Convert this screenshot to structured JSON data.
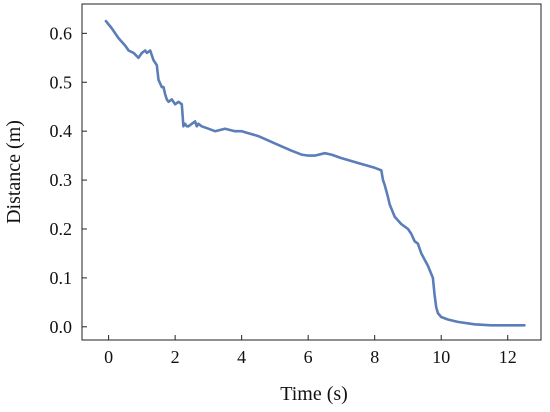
{
  "chart_data": {
    "type": "line",
    "xlabel": "Time (s)",
    "ylabel": "Distance (m)",
    "xlim": [
      -0.8,
      13.0
    ],
    "ylim": [
      -0.027,
      0.66
    ],
    "xticks": [
      0,
      2,
      4,
      6,
      8,
      10,
      12
    ],
    "yticks": [
      0.0,
      0.1,
      0.2,
      0.3,
      0.4,
      0.5,
      0.6
    ],
    "xtick_labels": [
      "0",
      "2",
      "4",
      "6",
      "8",
      "10",
      "12"
    ],
    "ytick_labels": [
      "0.0",
      "0.1",
      "0.2",
      "0.3",
      "0.4",
      "0.5",
      "0.6"
    ],
    "grid": false,
    "line_color": "#5b7db8",
    "series": [
      {
        "x": [
          -0.08,
          0.1,
          0.3,
          0.5,
          0.6,
          0.75,
          0.9,
          1.0,
          1.1,
          1.15,
          1.25,
          1.35,
          1.45,
          1.5,
          1.6,
          1.65,
          1.7,
          1.75,
          1.8,
          1.9,
          2.0,
          2.1,
          2.2,
          2.25,
          2.3,
          2.35,
          2.4,
          2.5,
          2.6,
          2.65,
          2.7,
          2.8,
          3.0,
          3.2,
          3.5,
          3.8,
          4.0,
          4.5,
          5.0,
          5.5,
          5.8,
          6.0,
          6.2,
          6.5,
          6.7,
          7.0,
          7.5,
          8.0,
          8.2,
          8.25,
          8.3,
          8.4,
          8.45,
          8.6,
          8.8,
          9.0,
          9.1,
          9.2,
          9.3,
          9.4,
          9.6,
          9.75,
          9.8,
          9.85,
          9.9,
          10.0,
          10.2,
          10.5,
          11.0,
          11.5,
          12.0,
          12.5
        ],
        "y": [
          0.625,
          0.61,
          0.59,
          0.575,
          0.565,
          0.56,
          0.55,
          0.56,
          0.565,
          0.56,
          0.565,
          0.545,
          0.535,
          0.505,
          0.49,
          0.49,
          0.475,
          0.465,
          0.46,
          0.465,
          0.455,
          0.46,
          0.455,
          0.41,
          0.415,
          0.41,
          0.41,
          0.415,
          0.42,
          0.41,
          0.415,
          0.41,
          0.405,
          0.4,
          0.405,
          0.4,
          0.4,
          0.39,
          0.375,
          0.36,
          0.352,
          0.35,
          0.35,
          0.355,
          0.352,
          0.345,
          0.335,
          0.325,
          0.32,
          0.3,
          0.29,
          0.265,
          0.25,
          0.225,
          0.21,
          0.2,
          0.19,
          0.175,
          0.17,
          0.15,
          0.125,
          0.1,
          0.065,
          0.04,
          0.028,
          0.02,
          0.015,
          0.01,
          0.005,
          0.003,
          0.003,
          0.003
        ]
      }
    ]
  }
}
